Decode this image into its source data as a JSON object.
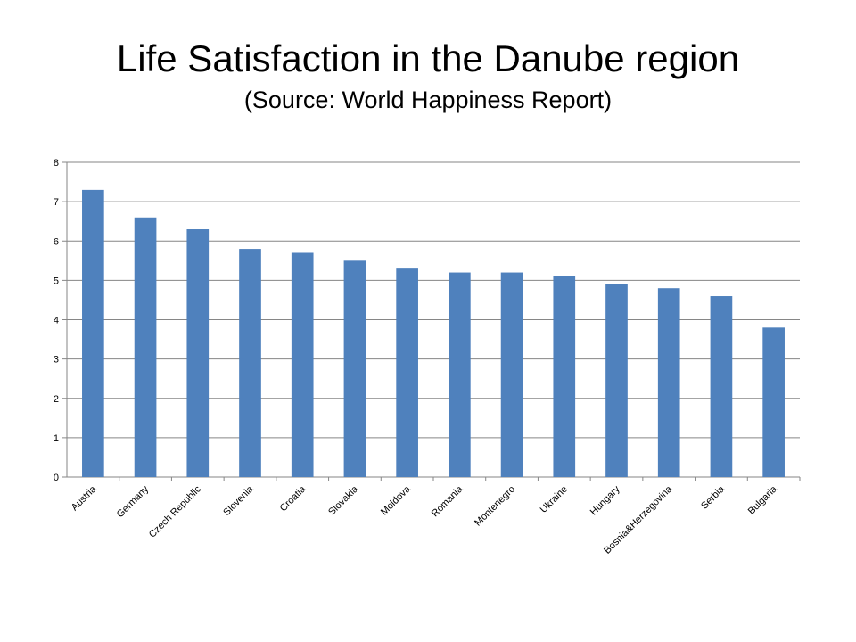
{
  "slide": {
    "title": "Life Satisfaction in the Danube region",
    "subtitle": "(Source: World Happiness Report)"
  },
  "colors": {
    "bar": "#4f81bd",
    "grid": "#868686",
    "axis": "#868686",
    "text": "#000000"
  },
  "chart_data": {
    "type": "bar",
    "categories": [
      "Austria",
      "Germany",
      "Czech Republic",
      "Slovenia",
      "Croatia",
      "Slovakia",
      "Moldova",
      "Romania",
      "Montenegro",
      "Ukraine",
      "Hungary",
      "Bosnia&Herzegovina",
      "Serbia",
      "Bulgaria"
    ],
    "values": [
      7.3,
      6.6,
      6.3,
      5.8,
      5.7,
      5.5,
      5.3,
      5.2,
      5.2,
      5.1,
      4.9,
      4.8,
      4.6,
      3.8
    ],
    "title": "",
    "xlabel": "",
    "ylabel": "",
    "ylim": [
      0,
      8
    ],
    "yticks": [
      0,
      1,
      2,
      3,
      4,
      5,
      6,
      7,
      8
    ],
    "grid": true,
    "legend": "none"
  }
}
